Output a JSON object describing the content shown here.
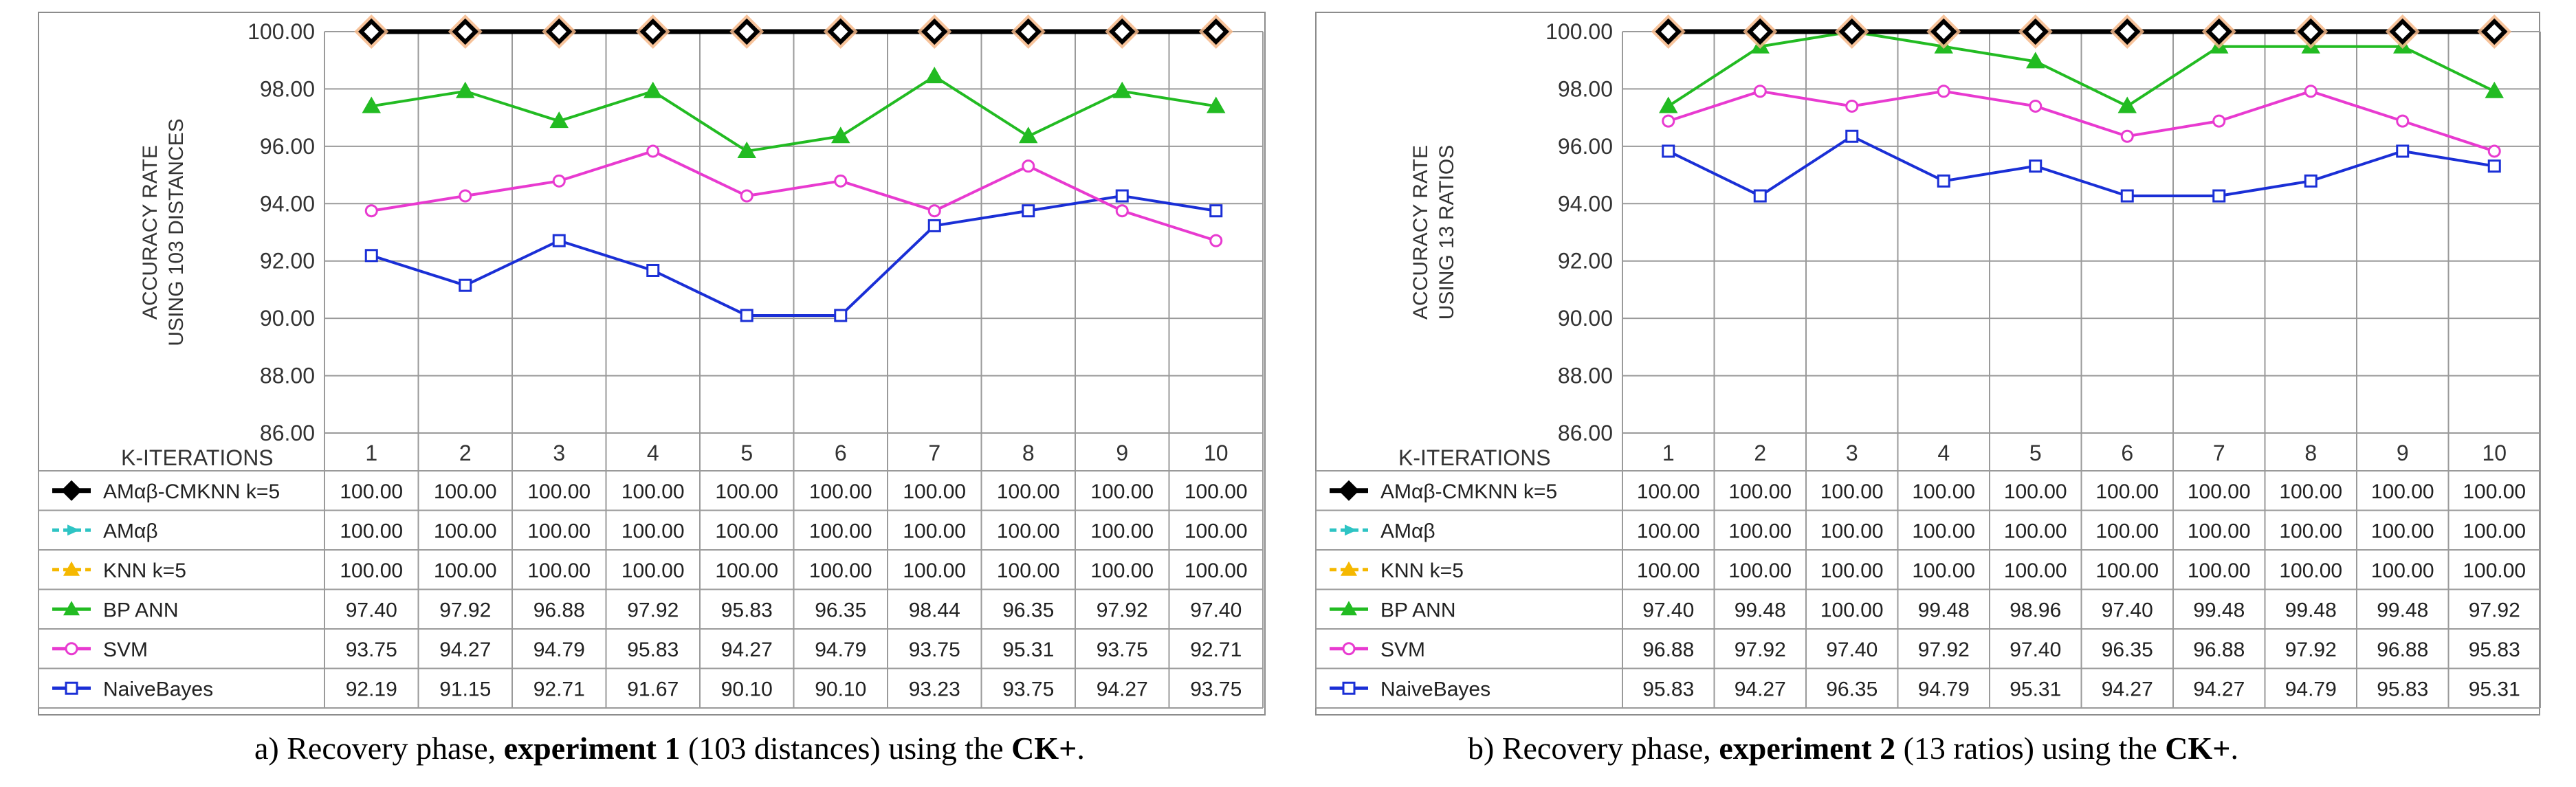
{
  "chart_data": [
    {
      "type": "line",
      "panel": "a",
      "ylabel_lines": [
        "ACCURACY RATE",
        "USING 103 DISTANCES"
      ],
      "xlabel": "K-ITERATIONS",
      "ylim": [
        86,
        100
      ],
      "yticks": [
        "86.00",
        "88.00",
        "90.00",
        "92.00",
        "94.00",
        "96.00",
        "98.00",
        "100.00"
      ],
      "categories": [
        "1",
        "2",
        "3",
        "4",
        "5",
        "6",
        "7",
        "8",
        "9",
        "10"
      ],
      "series": [
        {
          "name": "AMαβ-CMKNN k=5",
          "color": "#000000",
          "marker": "diamond",
          "values": [
            100,
            100,
            100,
            100,
            100,
            100,
            100,
            100,
            100,
            100
          ],
          "labels": [
            "100.00",
            "100.00",
            "100.00",
            "100.00",
            "100.00",
            "100.00",
            "100.00",
            "100.00",
            "100.00",
            "100.00"
          ]
        },
        {
          "name": "AMαβ",
          "color": "#2ec4c4",
          "marker": "star",
          "values": [
            100,
            100,
            100,
            100,
            100,
            100,
            100,
            100,
            100,
            100
          ],
          "labels": [
            "100.00",
            "100.00",
            "100.00",
            "100.00",
            "100.00",
            "100.00",
            "100.00",
            "100.00",
            "100.00",
            "100.00"
          ]
        },
        {
          "name": "KNN k=5",
          "color": "#f5b800",
          "marker": "triangle",
          "values": [
            100,
            100,
            100,
            100,
            100,
            100,
            100,
            100,
            100,
            100
          ],
          "labels": [
            "100.00",
            "100.00",
            "100.00",
            "100.00",
            "100.00",
            "100.00",
            "100.00",
            "100.00",
            "100.00",
            "100.00"
          ]
        },
        {
          "name": "BP ANN",
          "color": "#22bb22",
          "marker": "triangle",
          "values": [
            97.4,
            97.92,
            96.88,
            97.92,
            95.83,
            96.35,
            98.44,
            96.35,
            97.92,
            97.4
          ],
          "labels": [
            "97.40",
            "97.92",
            "96.88",
            "97.92",
            "95.83",
            "96.35",
            "98.44",
            "96.35",
            "97.92",
            "97.40"
          ]
        },
        {
          "name": "SVM",
          "color": "#e83ad0",
          "marker": "circle",
          "values": [
            93.75,
            94.27,
            94.79,
            95.83,
            94.27,
            94.79,
            93.75,
            95.31,
            93.75,
            92.71
          ],
          "labels": [
            "93.75",
            "94.27",
            "94.79",
            "95.83",
            "94.27",
            "94.79",
            "93.75",
            "95.31",
            "93.75",
            "92.71"
          ]
        },
        {
          "name": "NaiveBayes",
          "color": "#1a2fd6",
          "marker": "square",
          "values": [
            92.19,
            91.15,
            92.71,
            91.67,
            90.1,
            90.1,
            93.23,
            93.75,
            94.27,
            93.75
          ],
          "labels": [
            "92.19",
            "91.15",
            "92.71",
            "91.67",
            "90.10",
            "90.10",
            "93.23",
            "93.75",
            "94.27",
            "93.75"
          ]
        }
      ]
    },
    {
      "type": "line",
      "panel": "b",
      "ylabel_lines": [
        "ACCURACY RATE",
        "USING 13 RATIOS"
      ],
      "xlabel": "K-ITERATIONS",
      "ylim": [
        86,
        100
      ],
      "yticks": [
        "86.00",
        "88.00",
        "90.00",
        "92.00",
        "94.00",
        "96.00",
        "98.00",
        "100.00"
      ],
      "categories": [
        "1",
        "2",
        "3",
        "4",
        "5",
        "6",
        "7",
        "8",
        "9",
        "10"
      ],
      "series": [
        {
          "name": "AMαβ-CMKNN k=5",
          "color": "#000000",
          "marker": "diamond",
          "values": [
            100,
            100,
            100,
            100,
            100,
            100,
            100,
            100,
            100,
            100
          ],
          "labels": [
            "100.00",
            "100.00",
            "100.00",
            "100.00",
            "100.00",
            "100.00",
            "100.00",
            "100.00",
            "100.00",
            "100.00"
          ]
        },
        {
          "name": "AMαβ",
          "color": "#2ec4c4",
          "marker": "star",
          "values": [
            100,
            100,
            100,
            100,
            100,
            100,
            100,
            100,
            100,
            100
          ],
          "labels": [
            "100.00",
            "100.00",
            "100.00",
            "100.00",
            "100.00",
            "100.00",
            "100.00",
            "100.00",
            "100.00",
            "100.00"
          ]
        },
        {
          "name": "KNN k=5",
          "color": "#f5b800",
          "marker": "triangle",
          "values": [
            100,
            100,
            100,
            100,
            100,
            100,
            100,
            100,
            100,
            100
          ],
          "labels": [
            "100.00",
            "100.00",
            "100.00",
            "100.00",
            "100.00",
            "100.00",
            "100.00",
            "100.00",
            "100.00",
            "100.00"
          ]
        },
        {
          "name": "BP ANN",
          "color": "#22bb22",
          "marker": "triangle",
          "values": [
            97.4,
            99.48,
            100.0,
            99.48,
            98.96,
            97.4,
            99.48,
            99.48,
            99.48,
            97.92
          ],
          "labels": [
            "97.40",
            "99.48",
            "100.00",
            "99.48",
            "98.96",
            "97.40",
            "99.48",
            "99.48",
            "99.48",
            "97.92"
          ]
        },
        {
          "name": "SVM",
          "color": "#e83ad0",
          "marker": "circle",
          "values": [
            96.88,
            97.92,
            97.4,
            97.92,
            97.4,
            96.35,
            96.88,
            97.92,
            96.88,
            95.83
          ],
          "labels": [
            "96.88",
            "97.92",
            "97.40",
            "97.92",
            "97.40",
            "96.35",
            "96.88",
            "97.92",
            "96.88",
            "95.83"
          ]
        },
        {
          "name": "NaiveBayes",
          "color": "#1a2fd6",
          "marker": "square",
          "values": [
            95.83,
            94.27,
            96.35,
            94.79,
            95.31,
            94.27,
            94.27,
            94.79,
            95.83,
            95.31
          ],
          "labels": [
            "95.83",
            "94.27",
            "96.35",
            "94.79",
            "95.31",
            "94.27",
            "94.27",
            "94.79",
            "95.83",
            "95.31"
          ]
        }
      ]
    }
  ],
  "captions": [
    {
      "prefix": "a) Recovery phase, ",
      "bold1": "experiment 1",
      "middle": " (103 distances) using the ",
      "bold2": "CK+",
      "suffix": "."
    },
    {
      "prefix": "b) Recovery phase, ",
      "bold1": "experiment 2",
      "middle": " (13 ratios) using the ",
      "bold2": "CK+",
      "suffix": "."
    }
  ]
}
